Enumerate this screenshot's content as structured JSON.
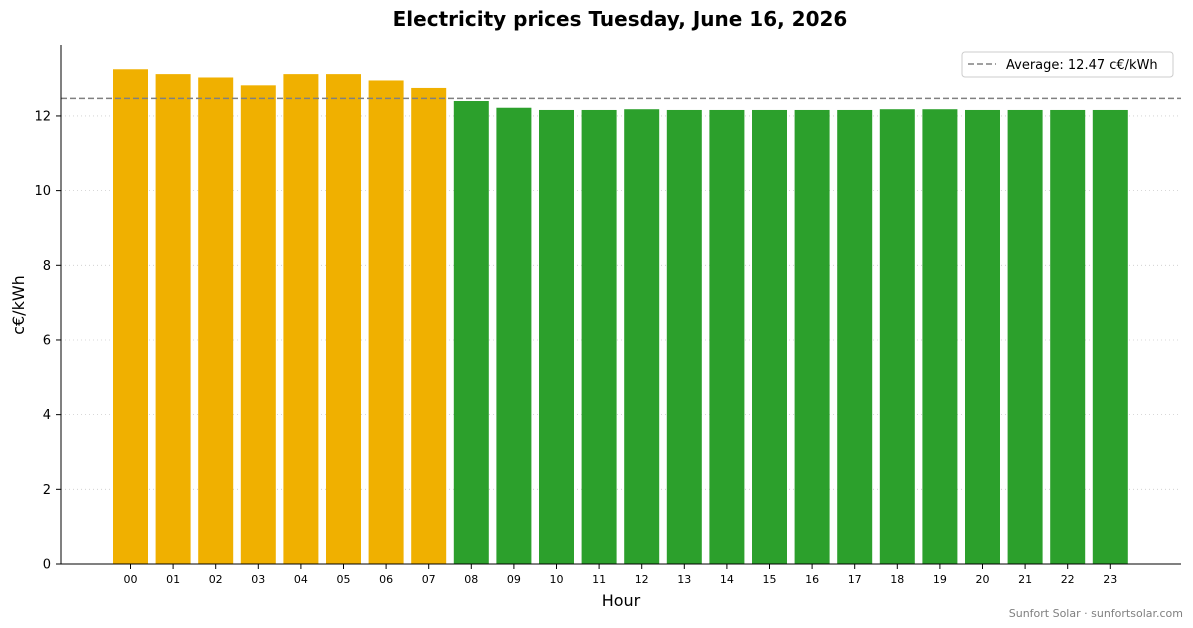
{
  "chart_data": {
    "type": "bar",
    "title": "Electricity prices Tuesday, June 16, 2026",
    "xlabel": "Hour",
    "ylabel": "c€/kWh",
    "categories": [
      "00",
      "01",
      "02",
      "03",
      "04",
      "05",
      "06",
      "07",
      "08",
      "09",
      "10",
      "11",
      "12",
      "13",
      "14",
      "15",
      "16",
      "17",
      "18",
      "19",
      "20",
      "21",
      "22",
      "23"
    ],
    "values": [
      13.25,
      13.12,
      13.03,
      12.82,
      13.12,
      13.12,
      12.95,
      12.75,
      12.4,
      12.22,
      12.16,
      12.16,
      12.18,
      12.16,
      12.16,
      12.16,
      12.16,
      12.16,
      12.18,
      12.18,
      12.16,
      12.16,
      12.16,
      12.16
    ],
    "ylim": [
      0,
      13.9
    ],
    "yticks": [
      0,
      2,
      4,
      6,
      8,
      10,
      12
    ],
    "grid": "horizontal-dotted",
    "average": {
      "value": 12.47,
      "label": "Average: 12.47 c€/kWh",
      "color": "#808080"
    },
    "colors": {
      "above_average": "#F0B000",
      "below_average": "#2CA02C"
    },
    "legend": "top-right"
  },
  "credit": "Sunfort Solar · sunfortsolar.com"
}
